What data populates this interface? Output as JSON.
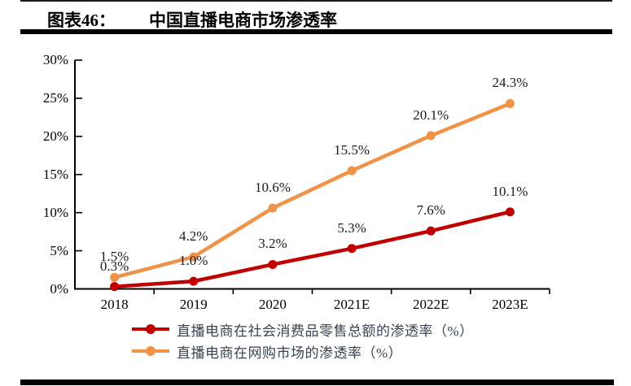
{
  "header": {
    "figure_label": "图表46：",
    "title": "中国直播电商市场渗透率"
  },
  "chart_data": {
    "type": "line",
    "title": "中国直播电商市场渗透率",
    "categories": [
      "2018",
      "2019",
      "2020",
      "2021E",
      "2022E",
      "2023E"
    ],
    "y_axis": {
      "min": 0,
      "max": 30,
      "tick_values": [
        0,
        5,
        10,
        15,
        20,
        25,
        30
      ],
      "tick_labels": [
        "0%",
        "5%",
        "10%",
        "15%",
        "20%",
        "25%",
        "30%"
      ]
    },
    "grid": false,
    "legend_position": "bottom",
    "series": [
      {
        "name": "直播电商在社会消费品零售总额的渗透率（%）",
        "color": "#c00000",
        "values": [
          0.3,
          1.0,
          3.2,
          5.3,
          7.6,
          10.1
        ],
        "point_labels": [
          "0.3%",
          "1.0%",
          "3.2%",
          "5.3%",
          "7.6%",
          "10.1%"
        ]
      },
      {
        "name": "直播电商在网购市场的渗透率（%）",
        "color": "#ee9348",
        "values": [
          1.5,
          4.2,
          10.6,
          15.5,
          20.1,
          24.3
        ],
        "point_labels": [
          "1.5%",
          "4.2%",
          "10.6%",
          "15.5%",
          "20.1%",
          "24.3%"
        ]
      }
    ]
  }
}
